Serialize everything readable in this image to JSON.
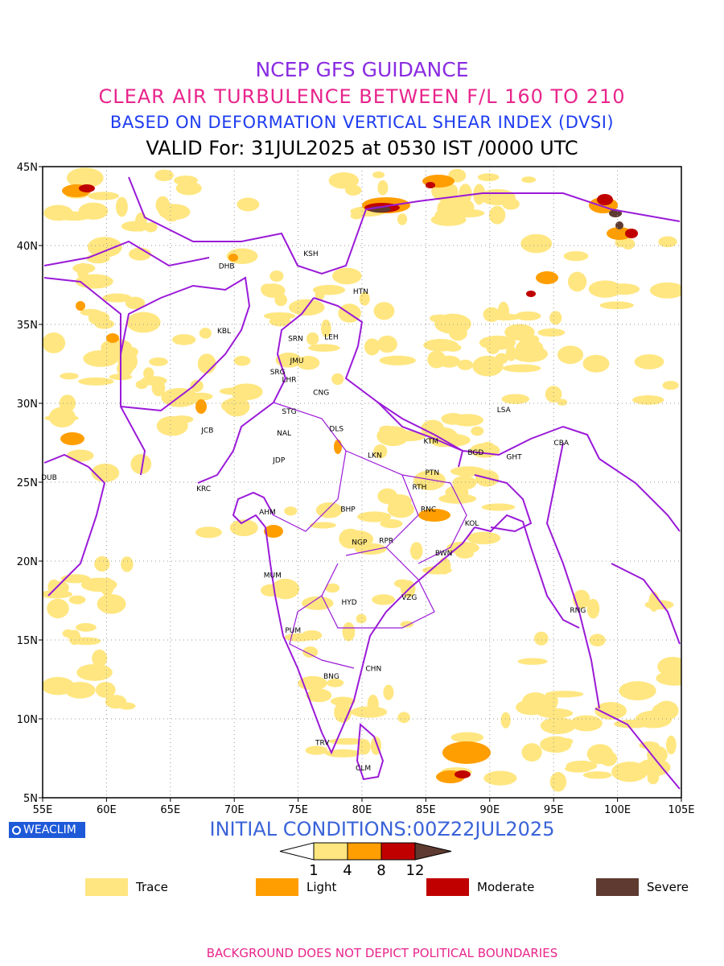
{
  "titles": {
    "line1": "NCEP GFS GUIDANCE",
    "line2": "CLEAR AIR TURBULENCE BETWEEN F/L 160 TO 210",
    "line3": "BASED ON DEFORMATION VERTICAL SHEAR INDEX (DVSI)",
    "line4": "VALID For: 31JUL2025 at 0530 IST /0000 UTC"
  },
  "colors": {
    "title1": "#8a2be2",
    "title2": "#e8258c",
    "title3": "#1e3cf0",
    "border": "#9a1ad8",
    "trace": "#ffe680",
    "light": "#ff9e00",
    "moderate": "#c00000",
    "severe": "#5e3a30",
    "logo": "#1e5ad8",
    "initial": "#3a63d8",
    "footer": "#e8258c"
  },
  "axes": {
    "x_ticks": [
      "55E",
      "60E",
      "65E",
      "70E",
      "75E",
      "80E",
      "85E",
      "90E",
      "95E",
      "100E",
      "105E"
    ],
    "y_ticks": [
      "45N",
      "40N",
      "35N",
      "30N",
      "25N",
      "20N",
      "15N",
      "10N",
      "5N"
    ]
  },
  "stations": [
    {
      "code": "DHB",
      "lon": 69.4,
      "lat": 38.7
    },
    {
      "code": "KSH",
      "lon": 76.0,
      "lat": 39.5
    },
    {
      "code": "HTN",
      "lon": 79.9,
      "lat": 37.1
    },
    {
      "code": "KBL",
      "lon": 69.2,
      "lat": 34.6
    },
    {
      "code": "SRN",
      "lon": 74.8,
      "lat": 34.1
    },
    {
      "code": "LEH",
      "lon": 77.6,
      "lat": 34.2
    },
    {
      "code": "JMU",
      "lon": 74.9,
      "lat": 32.7
    },
    {
      "code": "SRG",
      "lon": 73.4,
      "lat": 32.0
    },
    {
      "code": "LHR",
      "lon": 74.3,
      "lat": 31.5
    },
    {
      "code": "CNG",
      "lon": 76.8,
      "lat": 30.7
    },
    {
      "code": "STG",
      "lon": 74.3,
      "lat": 29.5
    },
    {
      "code": "DLS",
      "lon": 78.0,
      "lat": 28.4
    },
    {
      "code": "LSA",
      "lon": 91.1,
      "lat": 29.6
    },
    {
      "code": "JCB",
      "lon": 67.9,
      "lat": 28.3
    },
    {
      "code": "NAL",
      "lon": 73.9,
      "lat": 28.1
    },
    {
      "code": "KTM",
      "lon": 85.4,
      "lat": 27.6
    },
    {
      "code": "CBA",
      "lon": 95.6,
      "lat": 27.5
    },
    {
      "code": "BGD",
      "lon": 88.9,
      "lat": 26.9
    },
    {
      "code": "LKN",
      "lon": 81.0,
      "lat": 26.7
    },
    {
      "code": "GHT",
      "lon": 91.9,
      "lat": 26.6
    },
    {
      "code": "JDP",
      "lon": 73.5,
      "lat": 26.4
    },
    {
      "code": "PTN",
      "lon": 85.5,
      "lat": 25.6
    },
    {
      "code": "DUB",
      "lon": 55.5,
      "lat": 25.3
    },
    {
      "code": "KRC",
      "lon": 67.6,
      "lat": 24.6
    },
    {
      "code": "RTH",
      "lon": 84.5,
      "lat": 24.7
    },
    {
      "code": "BHP",
      "lon": 78.9,
      "lat": 23.3
    },
    {
      "code": "AHM",
      "lon": 72.6,
      "lat": 23.1
    },
    {
      "code": "RNC",
      "lon": 85.2,
      "lat": 23.3
    },
    {
      "code": "KOL",
      "lon": 88.6,
      "lat": 22.4
    },
    {
      "code": "NGP",
      "lon": 79.8,
      "lat": 21.2
    },
    {
      "code": "RPR",
      "lon": 81.9,
      "lat": 21.3
    },
    {
      "code": "BWN",
      "lon": 86.4,
      "lat": 20.5
    },
    {
      "code": "MUM",
      "lon": 73.0,
      "lat": 19.1
    },
    {
      "code": "HYD",
      "lon": 79.0,
      "lat": 17.4
    },
    {
      "code": "VZG",
      "lon": 83.7,
      "lat": 17.7
    },
    {
      "code": "RNG",
      "lon": 96.9,
      "lat": 16.9
    },
    {
      "code": "PUM",
      "lon": 74.6,
      "lat": 15.6
    },
    {
      "code": "CHN",
      "lon": 80.9,
      "lat": 13.2
    },
    {
      "code": "BNG",
      "lon": 77.6,
      "lat": 12.7
    },
    {
      "code": "TRV",
      "lon": 76.9,
      "lat": 8.5
    },
    {
      "code": "CLM",
      "lon": 80.1,
      "lat": 6.9
    }
  ],
  "initial_conditions": "INITIAL CONDITIONS:00Z22JUL2025",
  "logo_text": "WEACLIM",
  "colorbar": {
    "ticks": [
      "1",
      "4",
      "8",
      "12"
    ]
  },
  "legend": [
    {
      "label": "Trace",
      "color": "#ffe680"
    },
    {
      "label": "Light",
      "color": "#ff9e00"
    },
    {
      "label": "Moderate",
      "color": "#c00000"
    },
    {
      "label": "Severe",
      "color": "#5e3a30"
    }
  ],
  "footer": "BACKGROUND DOES NOT DEPICT POLITICAL BOUNDARIES"
}
